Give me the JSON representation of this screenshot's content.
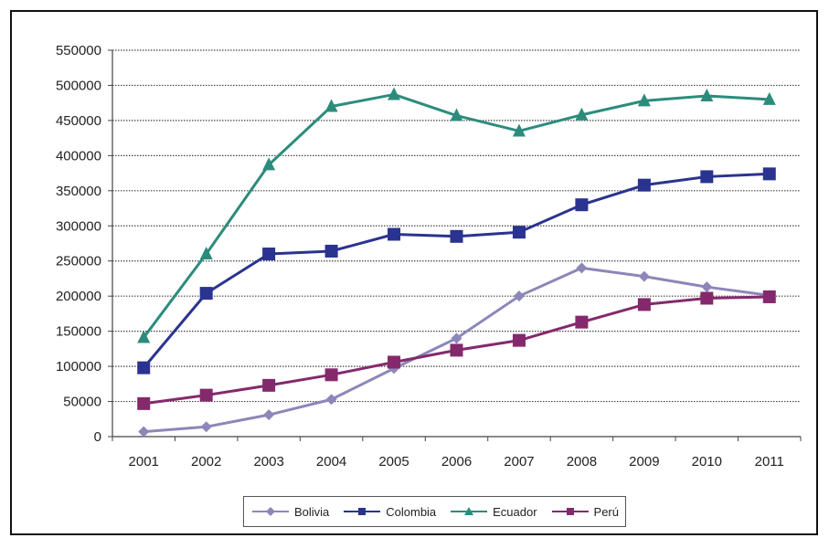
{
  "chart_data": {
    "type": "line",
    "x": [
      "2001",
      "2002",
      "2003",
      "2004",
      "2005",
      "2006",
      "2007",
      "2008",
      "2009",
      "2010",
      "2011"
    ],
    "ylim": [
      0,
      550000
    ],
    "yticks": [
      0,
      50000,
      100000,
      150000,
      200000,
      250000,
      300000,
      350000,
      400000,
      450000,
      500000,
      550000
    ],
    "ytick_labels": [
      "0",
      "50000",
      "100000",
      "150000",
      "200000",
      "250000",
      "300000",
      "350000",
      "400000",
      "450000",
      "500000",
      "550000"
    ],
    "grid": true,
    "legend_position": "bottom",
    "series": [
      {
        "name": "Bolivia",
        "color": "#8c87b8",
        "marker": "diamond",
        "values": [
          7000,
          14000,
          31000,
          53000,
          97000,
          140000,
          200000,
          240000,
          228000,
          213000,
          201000
        ]
      },
      {
        "name": "Colombia",
        "color": "#2a338f",
        "marker": "square",
        "values": [
          98000,
          204000,
          260000,
          264000,
          288000,
          285000,
          291000,
          330000,
          358000,
          370000,
          374000
        ]
      },
      {
        "name": "Ecuador",
        "color": "#2c8c7c",
        "marker": "triangle",
        "values": [
          141000,
          260000,
          387000,
          470000,
          487000,
          457000,
          435000,
          458000,
          478000,
          485000,
          480000
        ]
      },
      {
        "name": "Perú",
        "color": "#842a6c",
        "marker": "square",
        "values": [
          47000,
          59000,
          73000,
          88000,
          106000,
          123000,
          137000,
          163000,
          188000,
          197000,
          199000
        ]
      }
    ]
  }
}
